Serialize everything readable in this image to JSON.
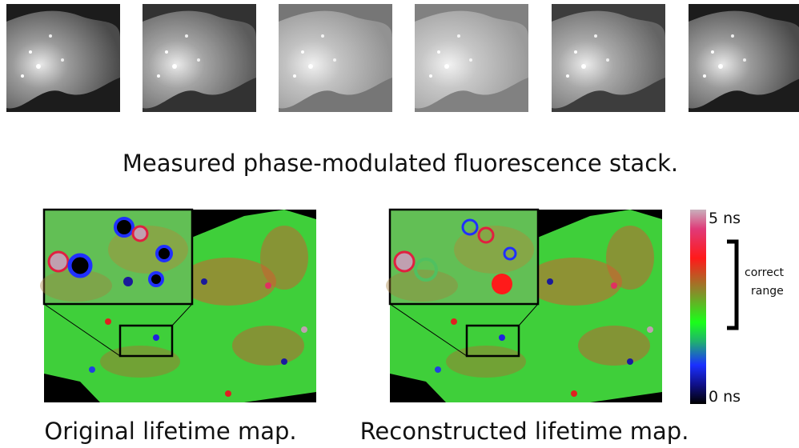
{
  "stack_caption": "Measured phase-modulated fluorescence stack.",
  "maps": [
    {
      "caption": "Original lifetime map."
    },
    {
      "caption": "Reconstructed lifetime map."
    }
  ],
  "colorbar": {
    "max_label": "5 ns",
    "min_label": "0 ns",
    "bracket_label_lines": [
      "correct",
      "range"
    ]
  }
}
